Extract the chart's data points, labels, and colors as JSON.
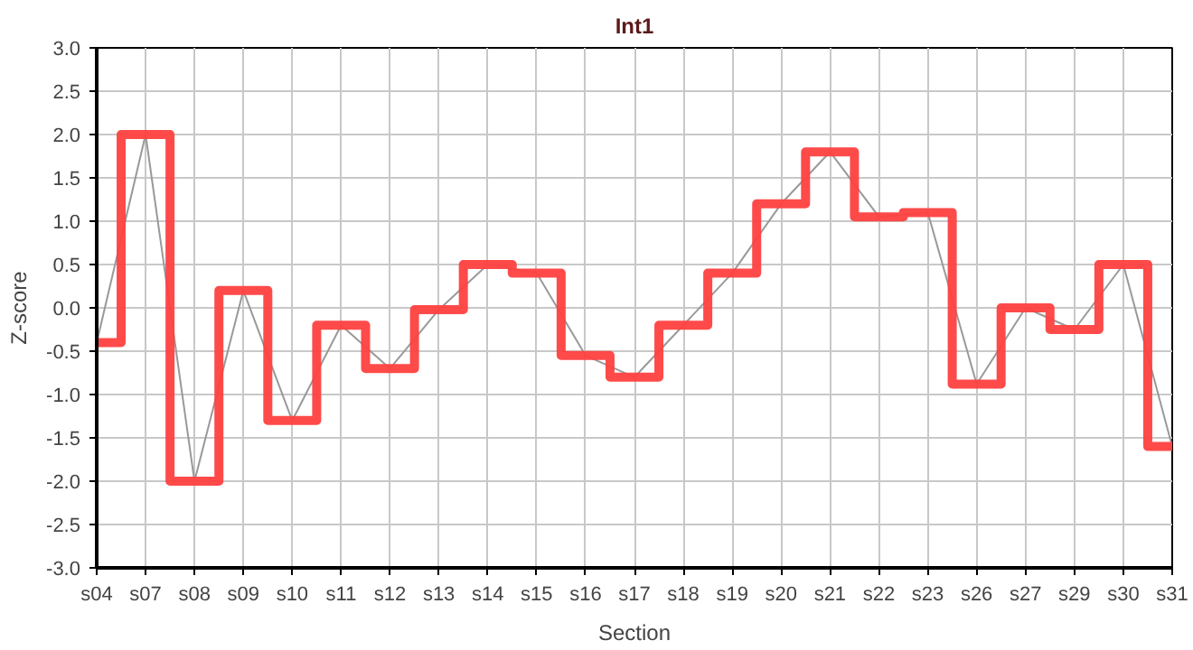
{
  "chart_data": {
    "type": "line",
    "title": "Int1",
    "xlabel": "Section",
    "ylabel": "Z-score",
    "categories": [
      "s04",
      "s07",
      "s08",
      "s09",
      "s10",
      "s11",
      "s12",
      "s13",
      "s14",
      "s15",
      "s16",
      "s17",
      "s18",
      "s19",
      "s20",
      "s21",
      "s22",
      "s23",
      "s26",
      "s27",
      "s29",
      "s30",
      "s31"
    ],
    "series": [
      {
        "color": "#999999",
        "values": [
          -0.4,
          2.0,
          -2.0,
          0.2,
          -1.3,
          -0.2,
          -0.7,
          -0.02,
          0.5,
          0.4,
          -0.55,
          -0.8,
          -0.2,
          0.4,
          1.2,
          1.8,
          1.05,
          1.1,
          -0.88,
          0.0,
          -0.25,
          0.5,
          -1.6
        ]
      },
      {
        "type": "step",
        "color": "#ff4040",
        "values": [
          -0.4,
          2.0,
          -2.0,
          0.2,
          -1.3,
          -0.2,
          -0.7,
          -0.02,
          0.5,
          0.4,
          -0.55,
          -0.8,
          -0.2,
          0.4,
          1.2,
          1.8,
          1.05,
          1.1,
          -0.88,
          0.0,
          -0.25,
          0.5,
          -1.6
        ]
      }
    ],
    "ylim": [
      -3.0,
      3.0
    ],
    "yticks": [
      {
        "value": -3,
        "label": "-3.0"
      },
      {
        "value": -2.5,
        "label": "-2.5"
      },
      {
        "value": -2,
        "label": "-2.0"
      },
      {
        "value": -1.5,
        "label": "-1.5"
      },
      {
        "value": -1,
        "label": "-1.0"
      },
      {
        "value": -0.5,
        "label": "-0.5"
      },
      {
        "value": 0,
        "label": "0.0"
      },
      {
        "value": 0.5,
        "label": "0.5"
      },
      {
        "value": 1,
        "label": "1.0"
      },
      {
        "value": 1.5,
        "label": "1.5"
      },
      {
        "value": 2,
        "label": "2.0"
      },
      {
        "value": 2.5,
        "label": "2.5"
      },
      {
        "value": 3,
        "label": "3.0"
      }
    ],
    "grid": true
  }
}
